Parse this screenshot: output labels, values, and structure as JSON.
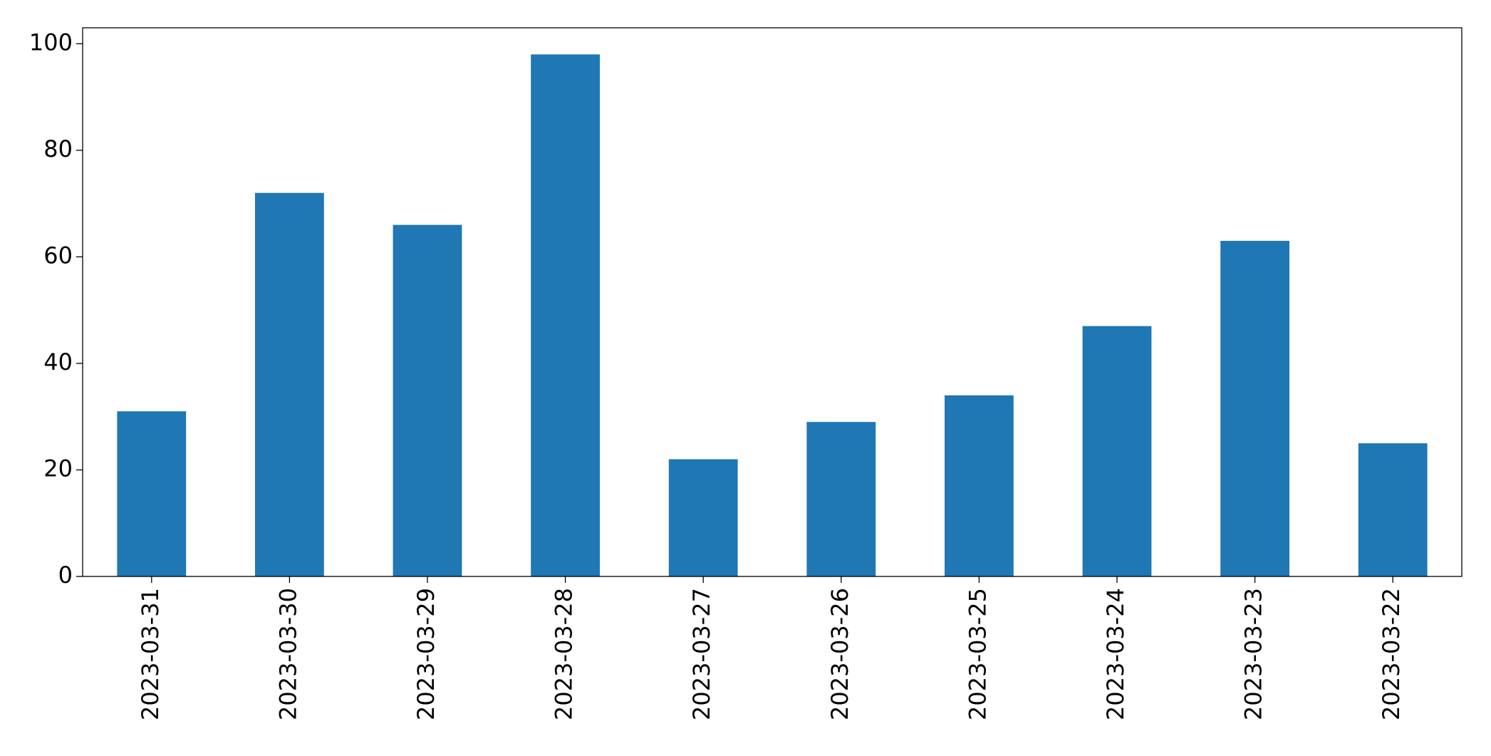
{
  "chart_data": {
    "type": "bar",
    "categories": [
      "2023-03-31",
      "2023-03-30",
      "2023-03-29",
      "2023-03-28",
      "2023-03-27",
      "2023-03-26",
      "2023-03-25",
      "2023-03-24",
      "2023-03-23",
      "2023-03-22"
    ],
    "values": [
      31,
      72,
      66,
      98,
      22,
      29,
      34,
      47,
      63,
      25
    ],
    "color": "#1f77b4",
    "ylim": [
      0,
      103
    ],
    "yticks": [
      0,
      20,
      40,
      60,
      80,
      100
    ],
    "grid": false
  }
}
